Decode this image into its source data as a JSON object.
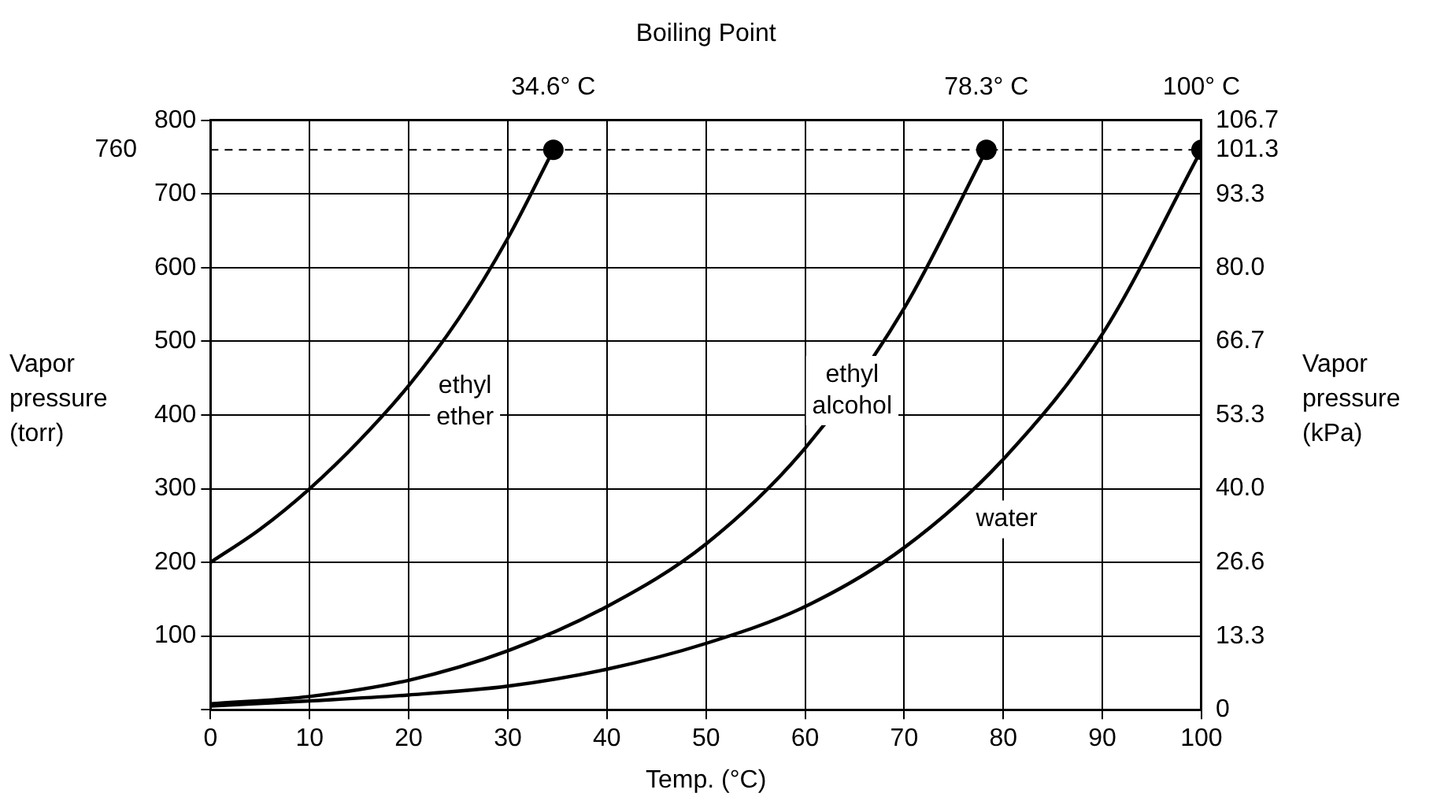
{
  "chart_data": {
    "type": "line",
    "x2label": "Boiling Point",
    "xlabel": "Temp. (°C)",
    "ylabel": "Vapor pressure (torr)",
    "y2label": "Vapor pressure (kPa)",
    "xlim": [
      0,
      100
    ],
    "xticks": [
      0,
      10,
      20,
      30,
      40,
      50,
      60,
      70,
      80,
      90,
      100
    ],
    "x2lim": [
      0,
      100
    ],
    "x2ticks": [
      {
        "value": 34.6,
        "label": "34.6° C"
      },
      {
        "value": 78.3,
        "label": "78.3° C"
      },
      {
        "value": 100,
        "label": "100° C"
      }
    ],
    "ylim": [
      0,
      800
    ],
    "yticks": [
      {
        "value": 0,
        "label": null
      },
      100,
      200,
      300,
      400,
      500,
      600,
      700,
      800
    ],
    "y2lim": [
      0,
      106.7
    ],
    "y2ticks": [
      0,
      13.3,
      26.6,
      {
        "value": 40,
        "label": "40.0"
      },
      53.3,
      66.7,
      {
        "value": 80,
        "label": "80.0"
      },
      93.3,
      101.3,
      106.7
    ],
    "grid": true,
    "line_style": "solid",
    "marker": "none",
    "series": [
      {
        "name": "ethyl ether",
        "color": "#000000",
        "x": [
          0,
          5,
          10,
          15,
          20,
          25,
          30,
          34.6
        ],
        "values": [
          200,
          245,
          300,
          365,
          440,
          530,
          640,
          760
        ]
      },
      {
        "name": "ethyl alcohol",
        "color": "#000000",
        "x": [
          0,
          10,
          20,
          30,
          40,
          50,
          60,
          70,
          78.3
        ],
        "values": [
          8,
          18,
          40,
          80,
          140,
          225,
          355,
          545,
          760
        ]
      },
      {
        "name": "water",
        "color": "#000000",
        "x": [
          0,
          10,
          20,
          30,
          40,
          50,
          60,
          70,
          80,
          90,
          100
        ],
        "values": [
          5,
          12,
          20,
          32,
          55,
          90,
          140,
          220,
          340,
          510,
          760
        ]
      },
      {
        "type": "scatter",
        "marker": "circle",
        "color": "#000000",
        "x": [
          34.6,
          78.3,
          100
        ],
        "values": [
          760,
          760,
          760
        ]
      }
    ],
    "ref_lines": [
      {
        "axis": "y",
        "value": 760,
        "label": "760",
        "line_style": "dashed",
        "color": "#000000"
      }
    ]
  }
}
